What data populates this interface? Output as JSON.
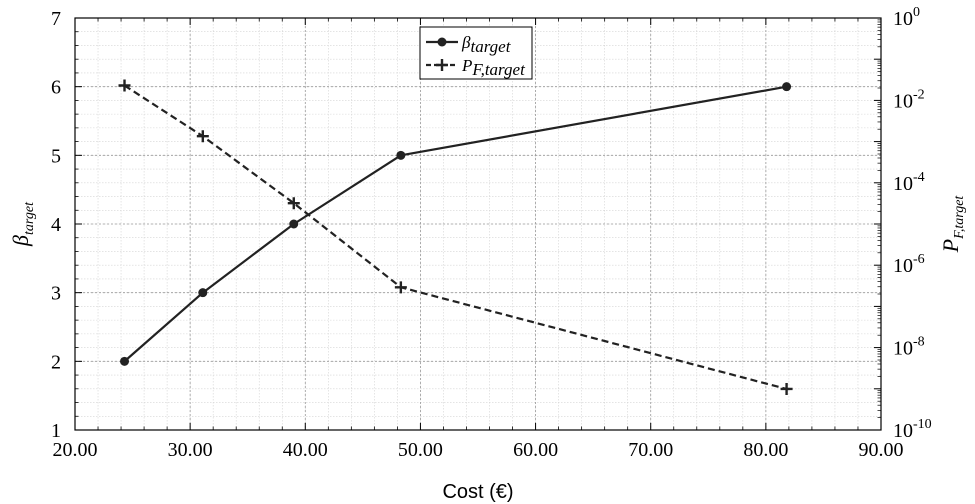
{
  "chart_data": {
    "type": "line",
    "x_axis": {
      "label": "Cost (€)",
      "range": [
        20,
        90
      ],
      "ticks": [
        20,
        30,
        40,
        50,
        60,
        70,
        80,
        90
      ],
      "tick_labels": [
        "20.00",
        "30.00",
        "40.00",
        "50.00",
        "60.00",
        "70.00",
        "80.00",
        "90.00"
      ]
    },
    "y_axis_left": {
      "label_symbol": "β",
      "label_subscript": "target",
      "range": [
        1,
        7
      ],
      "ticks": [
        1,
        2,
        3,
        4,
        5,
        6,
        7
      ],
      "tick_labels": [
        "1",
        "2",
        "3",
        "4",
        "5",
        "6",
        "7"
      ]
    },
    "y_axis_right": {
      "label_symbol": "P",
      "label_subscript": "F,target",
      "scale": "log",
      "range": [
        1e-10,
        1
      ],
      "tick_exponents": [
        0,
        -2,
        -4,
        -6,
        -8,
        -10
      ],
      "tick_base": "10"
    },
    "series": [
      {
        "name_symbol": "β",
        "name_subscript": "target",
        "axis": "left",
        "line_style": "solid",
        "marker": "circle",
        "x": [
          24.3,
          31.1,
          39.0,
          48.3,
          81.8
        ],
        "y": [
          2,
          3,
          4,
          5,
          6
        ]
      },
      {
        "name_symbol": "P",
        "name_subscript": "F,target",
        "axis": "right",
        "line_style": "dashed",
        "marker": "plus",
        "x": [
          24.3,
          31.1,
          39.0,
          48.3,
          81.8
        ],
        "y": [
          0.023,
          0.00135,
          3.2e-05,
          2.9e-07,
          9.9e-10
        ]
      }
    ],
    "grid": true,
    "minor_grid": true,
    "legend_position": "top-center",
    "line_color": "#222222"
  }
}
